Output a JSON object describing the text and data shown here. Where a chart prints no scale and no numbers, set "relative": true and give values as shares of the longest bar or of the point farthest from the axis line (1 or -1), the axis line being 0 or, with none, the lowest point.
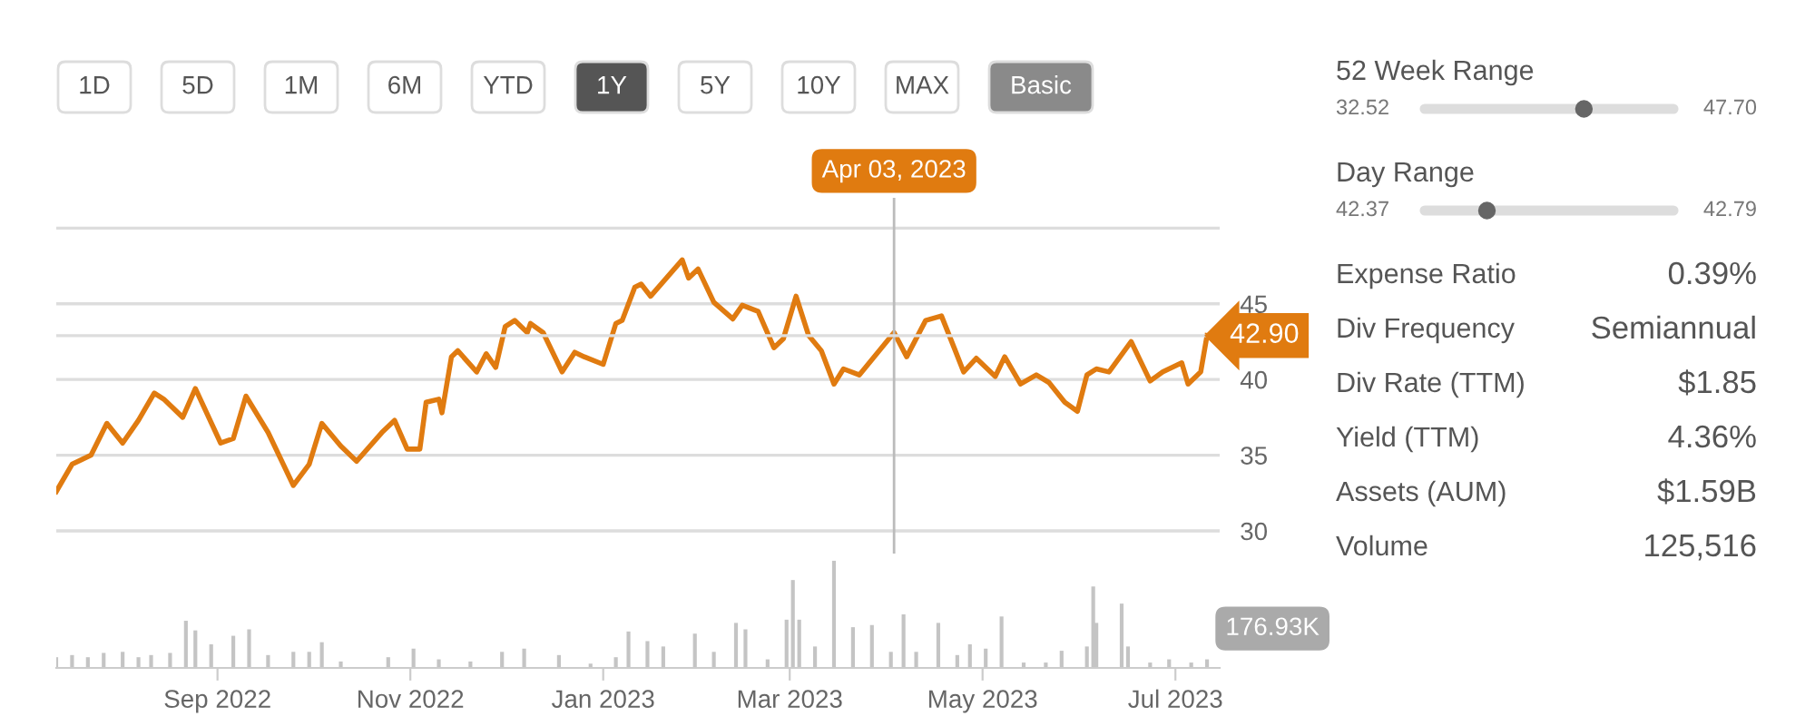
{
  "chart_data": [
    {
      "type": "other",
      "categories": [
        "1D",
        "5D",
        "1M",
        "6M",
        "YTD",
        "1Y",
        "5Y",
        "10Y",
        "MAX",
        "Basic"
      ],
      "colors": [
        "#ffffff",
        "#ffffff",
        "#ffffff",
        "#ffffff",
        "#ffffff",
        "#555555",
        "#ffffff",
        "#ffffff",
        "#ffffff",
        "#8a8a8a"
      ]
    },
    {
      "type": "line",
      "color": "#e07b10",
      "grid": "y",
      "tick_labels": "y",
      "x": [
        "2022-07-12",
        "2022-07-17",
        "2022-07-23",
        "2022-07-28",
        "2022-08-02",
        "2022-08-07",
        "2022-08-12",
        "2022-08-15",
        "2022-08-21",
        "2022-08-25",
        "2022-09-02",
        "2022-09-06",
        "2022-09-10",
        "2022-09-17",
        "2022-09-25",
        "2022-09-30",
        "2022-10-04",
        "2022-10-10",
        "2022-10-15",
        "2022-10-23",
        "2022-10-27",
        "2022-10-31",
        "2022-11-04",
        "2022-11-06",
        "2022-11-10",
        "2022-11-11",
        "2022-11-14",
        "2022-11-16",
        "2022-11-22",
        "2022-11-25",
        "2022-11-28",
        "2022-12-01",
        "2022-12-04",
        "2022-12-08",
        "2022-12-09",
        "2022-12-13",
        "2022-12-19",
        "2022-12-23",
        "2022-12-26",
        "2023-01-01",
        "2023-01-05",
        "2023-01-07",
        "2023-01-11",
        "2023-01-13",
        "2023-01-16",
        "2023-01-21",
        "2023-01-26",
        "2023-01-28",
        "2023-01-31",
        "2023-02-05",
        "2023-02-11",
        "2023-02-14",
        "2023-02-19",
        "2023-02-24",
        "2023-02-27",
        "2023-03-03",
        "2023-03-07",
        "2023-03-11",
        "2023-03-15",
        "2023-03-18",
        "2023-03-23",
        "2023-04-03",
        "2023-04-07",
        "2023-04-13",
        "2023-04-18",
        "2023-04-22",
        "2023-04-25",
        "2023-04-29",
        "2023-05-05",
        "2023-05-08",
        "2023-05-13",
        "2023-05-18",
        "2023-05-22",
        "2023-05-27",
        "2023-05-31",
        "2023-06-03",
        "2023-06-06",
        "2023-06-10",
        "2023-06-17",
        "2023-06-23",
        "2023-06-27",
        "2023-07-03",
        "2023-07-05",
        "2023-07-09",
        "2023-07-11"
      ],
      "values": [
        32.6,
        34.4,
        35.0,
        37.1,
        35.8,
        37.3,
        39.1,
        38.7,
        37.5,
        39.4,
        35.8,
        36.1,
        38.9,
        36.5,
        33.0,
        34.4,
        37.1,
        35.6,
        34.6,
        36.5,
        37.3,
        35.4,
        35.4,
        38.5,
        38.7,
        37.8,
        41.5,
        41.9,
        40.5,
        41.7,
        40.8,
        43.5,
        43.9,
        43.1,
        43.7,
        43.1,
        40.5,
        41.8,
        41.5,
        41.0,
        43.7,
        43.9,
        46.1,
        46.3,
        45.5,
        46.7,
        47.9,
        46.7,
        47.3,
        45.1,
        44.0,
        44.9,
        44.5,
        42.1,
        42.7,
        45.5,
        42.9,
        41.9,
        39.7,
        40.7,
        40.3,
        43.1,
        41.5,
        43.9,
        44.2,
        42.1,
        40.5,
        41.4,
        40.2,
        41.5,
        39.7,
        40.3,
        39.8,
        38.5,
        37.9,
        40.3,
        40.7,
        40.5,
        42.5,
        39.9,
        40.5,
        41.1,
        39.7,
        40.5,
        42.9
      ],
      "xlim": [
        "2022-07-12",
        "2023-07-15"
      ],
      "ylim": [
        28.5,
        52
      ],
      "yticks": [
        30,
        35,
        40,
        45,
        {
          "value": 50,
          "label": null
        }
      ],
      "ref_lines": [
        {
          "axis": "x",
          "value": "2023-04-03",
          "label": "Apr 03, 2023",
          "color": "#bbbbbb"
        },
        {
          "axis": "y",
          "value": 42.9,
          "label": "42.90",
          "color": "#dddddd"
        }
      ]
    },
    {
      "type": "bar",
      "relative": true,
      "color": "#c4c4c4",
      "x": [
        "2022-07-12",
        "2022-07-17",
        "2022-07-22",
        "2022-07-27",
        "2022-08-02",
        "2022-08-07",
        "2022-08-11",
        "2022-08-17",
        "2022-08-22",
        "2022-08-25",
        "2022-08-30",
        "2022-09-06",
        "2022-09-11",
        "2022-09-17",
        "2022-09-25",
        "2022-09-30",
        "2022-10-04",
        "2022-10-10",
        "2022-10-25",
        "2022-11-02",
        "2022-11-10",
        "2022-11-20",
        "2022-11-30",
        "2022-12-07",
        "2022-12-18",
        "2022-12-28",
        "2023-01-05",
        "2023-01-09",
        "2023-01-15",
        "2023-01-20",
        "2023-01-30",
        "2023-02-05",
        "2023-02-12",
        "2023-02-15",
        "2023-02-22",
        "2023-02-28",
        "2023-03-02",
        "2023-03-04",
        "2023-03-09",
        "2023-03-15",
        "2023-03-21",
        "2023-03-27",
        "2023-04-02",
        "2023-04-06",
        "2023-04-10",
        "2023-04-17",
        "2023-04-23",
        "2023-04-27",
        "2023-05-02",
        "2023-05-07",
        "2023-05-14",
        "2023-05-21",
        "2023-05-26",
        "2023-06-03",
        "2023-06-05",
        "2023-06-06",
        "2023-06-14",
        "2023-06-16",
        "2023-06-23",
        "2023-06-29",
        "2023-07-06",
        "2023-07-11"
      ],
      "values": [
        0.1,
        0.12,
        0.1,
        0.14,
        0.15,
        0.1,
        0.12,
        0.14,
        0.44,
        0.35,
        0.22,
        0.3,
        0.36,
        0.12,
        0.15,
        0.15,
        0.24,
        0.06,
        0.1,
        0.18,
        0.08,
        0.06,
        0.15,
        0.18,
        0.12,
        0.04,
        0.1,
        0.34,
        0.25,
        0.2,
        0.32,
        0.15,
        0.42,
        0.36,
        0.08,
        0.45,
        0.82,
        0.45,
        0.2,
        1.0,
        0.38,
        0.4,
        0.15,
        0.5,
        0.15,
        0.42,
        0.12,
        0.22,
        0.18,
        0.48,
        0.05,
        0.05,
        0.16,
        0.2,
        0.76,
        0.42,
        0.6,
        0.2,
        0.05,
        0.08,
        0.05,
        0.08
      ],
      "xlim": [
        "2022-07-12",
        "2023-07-15"
      ],
      "xticks": [
        {
          "value": "2022-09-01",
          "label": "Sep 2022"
        },
        {
          "value": "2022-11-01",
          "label": "Nov 2022"
        },
        {
          "value": "2023-01-01",
          "label": "Jan 2023"
        },
        {
          "value": "2023-03-01",
          "label": "Mar 2023"
        },
        {
          "value": "2023-05-01",
          "label": "May 2023"
        },
        {
          "value": "2023-07-01",
          "label": "Jul 2023"
        }
      ],
      "tick_labels": "x",
      "annotations": [
        "176.93K"
      ]
    },
    {
      "type": "other",
      "annotations": [
        "52 Week Range",
        "32.52",
        "47.70",
        "Day Range",
        "42.37",
        "42.79",
        "Expense Ratio",
        "0.39%",
        "Div Frequency",
        "Semiannual",
        "Div Rate (TTM)",
        "$1.85",
        "Yield (TTM)",
        "4.36%",
        "Assets (AUM)",
        "$1.59B",
        "Volume",
        "125,516"
      ]
    }
  ]
}
